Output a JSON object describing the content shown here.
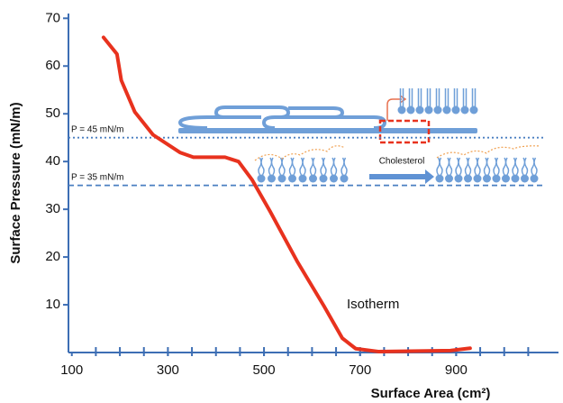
{
  "chart_data": {
    "type": "line",
    "x_label": "Surface Area (cm²)",
    "y_label": "Surface Pressure (mN/m)",
    "xlim": [
      93,
      1113
    ],
    "ylim": [
      0,
      71
    ],
    "xticks": [
      100,
      300,
      500,
      700,
      900
    ],
    "xminorticks": [
      150,
      200,
      250,
      300,
      350,
      400,
      450,
      500,
      550,
      600,
      650,
      700,
      750,
      800,
      850,
      900,
      950,
      1000,
      1050
    ],
    "yticks": [
      10,
      20,
      30,
      40,
      50,
      60,
      70
    ],
    "series": [
      {
        "name": "Isotherm",
        "color": "#e8321e",
        "x": [
          166,
          194,
          203,
          231,
          269,
          325,
          353,
          419,
          447,
          475,
          513,
          569,
          625,
          663,
          691,
          738,
          888,
          929
        ],
        "values": [
          66,
          62.5,
          57,
          50.4,
          45.6,
          41.9,
          40.9,
          40.9,
          40,
          36.2,
          29.5,
          19.1,
          9.7,
          3,
          0.8,
          0.2,
          0.4,
          0.9
        ]
      }
    ],
    "reference_lines": [
      {
        "value": 45,
        "label": "P = 45 mN/m",
        "style": "dotted",
        "color": "#4a7fc1"
      },
      {
        "value": 35,
        "label": "P = 35 mN/m",
        "style": "dashed",
        "color": "#4a7fc1"
      }
    ],
    "annotations": [
      "Cholesterol"
    ]
  }
}
